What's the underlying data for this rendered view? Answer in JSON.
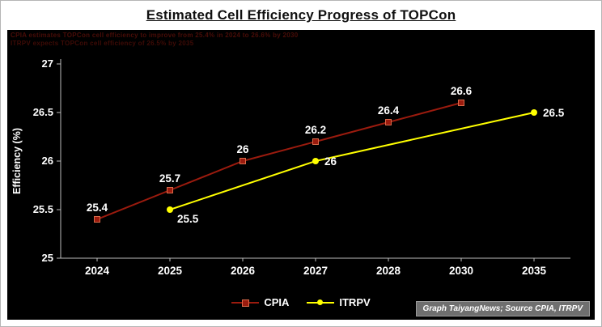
{
  "page": {
    "title": "Estimated Cell Efficiency Progress of TOPCon"
  },
  "annotation": {
    "line1": "CPIA estimates TOPCon cell efficiency to improve from 25.4% in 2024 to 26.6% by 2030",
    "line2": "ITRPV expects TOPCon cell efficiency of 26.5% by 2035"
  },
  "chart_data": {
    "type": "line",
    "title": "Estimated Cell Efficiency Progress of TOPCon",
    "xlabel": "",
    "ylabel": "Efficiency (%)",
    "ylim": [
      25,
      27
    ],
    "yticks": [
      "25",
      "25.5",
      "26",
      "26.5",
      "27"
    ],
    "grid": false,
    "legend_position": "bottom",
    "background": "#000000",
    "categories": [
      "2024",
      "2025",
      "2026",
      "2027",
      "2028",
      "2030",
      "2035"
    ],
    "series": [
      {
        "name": "CPIA",
        "color": "#9b1b0e",
        "marker": "square",
        "points": [
          {
            "x": "2024",
            "y": 25.4,
            "label": "25.4",
            "label_pos": "above"
          },
          {
            "x": "2025",
            "y": 25.7,
            "label": "25.7",
            "label_pos": "above"
          },
          {
            "x": "2026",
            "y": 26.0,
            "label": "26",
            "label_pos": "above"
          },
          {
            "x": "2027",
            "y": 26.2,
            "label": "26.2",
            "label_pos": "above"
          },
          {
            "x": "2028",
            "y": 26.4,
            "label": "26.4",
            "label_pos": "above"
          },
          {
            "x": "2030",
            "y": 26.6,
            "label": "26.6",
            "label_pos": "above"
          }
        ]
      },
      {
        "name": "ITRPV",
        "color": "#ffff00",
        "marker": "circle",
        "points": [
          {
            "x": "2025",
            "y": 25.5,
            "label": "25.5",
            "label_pos": "below-right"
          },
          {
            "x": "2027",
            "y": 26.0,
            "label": "26",
            "label_pos": "right"
          },
          {
            "x": "2035",
            "y": 26.5,
            "label": "26.5",
            "label_pos": "right"
          }
        ]
      }
    ]
  },
  "legend": {
    "items": [
      {
        "label": "CPIA",
        "color": "#9b1b0e",
        "marker": "square"
      },
      {
        "label": "ITRPV",
        "color": "#ffff00",
        "marker": "circle"
      }
    ]
  },
  "source": {
    "text": "Graph TaiyangNews; Source CPIA, ITRPV"
  }
}
